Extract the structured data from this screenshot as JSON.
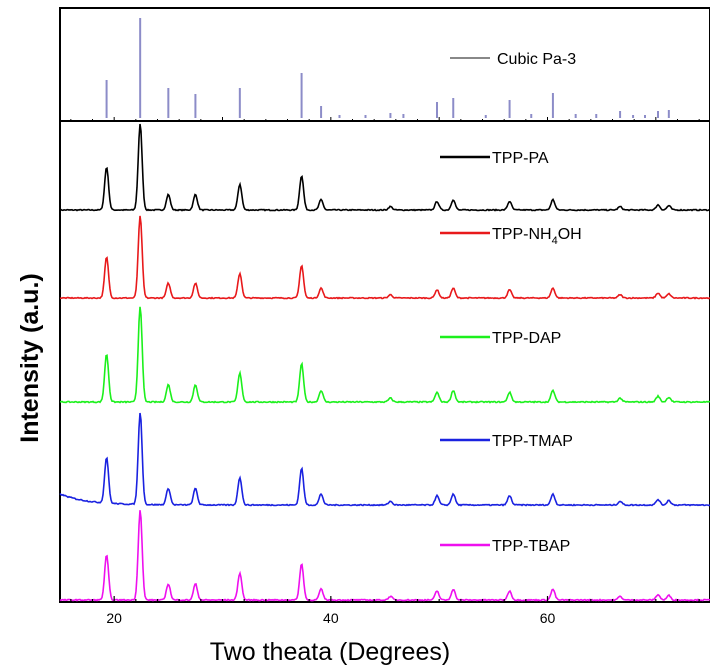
{
  "chart_data": {
    "type": "line",
    "xlabel": "Two theata (Degrees)",
    "ylabel": "Intensity (a.u.)",
    "xlim": [
      15,
      75
    ],
    "xticks": [
      "20",
      "40",
      "60"
    ],
    "xtick_values": [
      20,
      40,
      60
    ],
    "grid": false,
    "reference": {
      "name": "Cubic Pa-3",
      "color": "#8c8cc8",
      "legend_line_color": "#888888",
      "positions": [
        19.3,
        22.4,
        25.0,
        27.5,
        31.6,
        37.3,
        39.1,
        40.8,
        43.2,
        45.5,
        46.7,
        49.8,
        51.3,
        54.3,
        56.5,
        58.5,
        60.5,
        62.6,
        64.5,
        66.7,
        67.9,
        69.0,
        70.2,
        71.2
      ],
      "intensities": [
        0.38,
        1.0,
        0.3,
        0.24,
        0.3,
        0.45,
        0.12,
        0.03,
        0.03,
        0.05,
        0.04,
        0.16,
        0.2,
        0.03,
        0.18,
        0.04,
        0.25,
        0.04,
        0.04,
        0.07,
        0.03,
        0.03,
        0.07,
        0.08
      ]
    },
    "peaks": {
      "positions": [
        19.3,
        22.4,
        25.0,
        27.5,
        31.6,
        37.3,
        39.1,
        45.5,
        49.8,
        51.3,
        56.5,
        60.5,
        66.7,
        70.2,
        71.2
      ],
      "heights": [
        0.5,
        1.0,
        0.18,
        0.18,
        0.3,
        0.4,
        0.12,
        0.04,
        0.1,
        0.12,
        0.1,
        0.12,
        0.04,
        0.06,
        0.05
      ]
    },
    "series": [
      {
        "name": "TPP-PA",
        "color": "#000000",
        "scale": 1.0,
        "background": 0.0
      },
      {
        "name": "TPP-NH",
        "name_sub": "4",
        "name_end": "OH",
        "color": "#e8191b",
        "scale": 1.0,
        "background": 0.0
      },
      {
        "name": "TPP-DAP",
        "color": "#1cf01c",
        "scale": 1.0,
        "background": 0.0
      },
      {
        "name": "TPP-TMAP",
        "color": "#1a22e0",
        "scale": 1.0,
        "background": 0.12
      },
      {
        "name": "TPP-TBAP",
        "color": "#ee10ee",
        "scale": 1.0,
        "background": 0.0
      }
    ]
  }
}
